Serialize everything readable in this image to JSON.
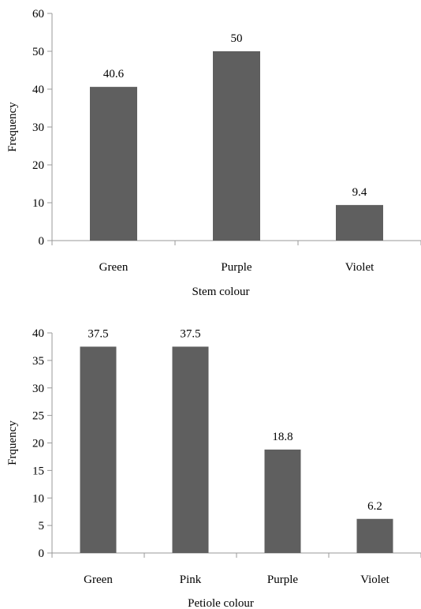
{
  "chart_data": [
    {
      "type": "bar",
      "categories": [
        "Green",
        "Purple",
        "Violet"
      ],
      "values": [
        40.6,
        50,
        9.4
      ],
      "data_labels": [
        "40.6",
        "50",
        "9.4"
      ],
      "xlabel": "Stem colour",
      "ylabel": "Frequency",
      "ylim": [
        0,
        60
      ],
      "yticks": [
        "0",
        "10",
        "20",
        "30",
        "40",
        "50",
        "60"
      ],
      "grid": false,
      "legend": "none",
      "bar_color": "#5f5f5f"
    },
    {
      "type": "bar",
      "categories": [
        "Green",
        "Pink",
        "Purple",
        "Violet"
      ],
      "values": [
        37.5,
        37.5,
        18.8,
        6.2
      ],
      "data_labels": [
        "37.5",
        "37.5",
        "18.8",
        "6.2"
      ],
      "xlabel": "Petiole colour",
      "ylabel": "Frquency",
      "ylim": [
        0,
        40
      ],
      "yticks": [
        "0",
        "5",
        "10",
        "15",
        "20",
        "25",
        "30",
        "35",
        "40"
      ],
      "grid": false,
      "legend": "none",
      "bar_color": "#5f5f5f"
    }
  ]
}
